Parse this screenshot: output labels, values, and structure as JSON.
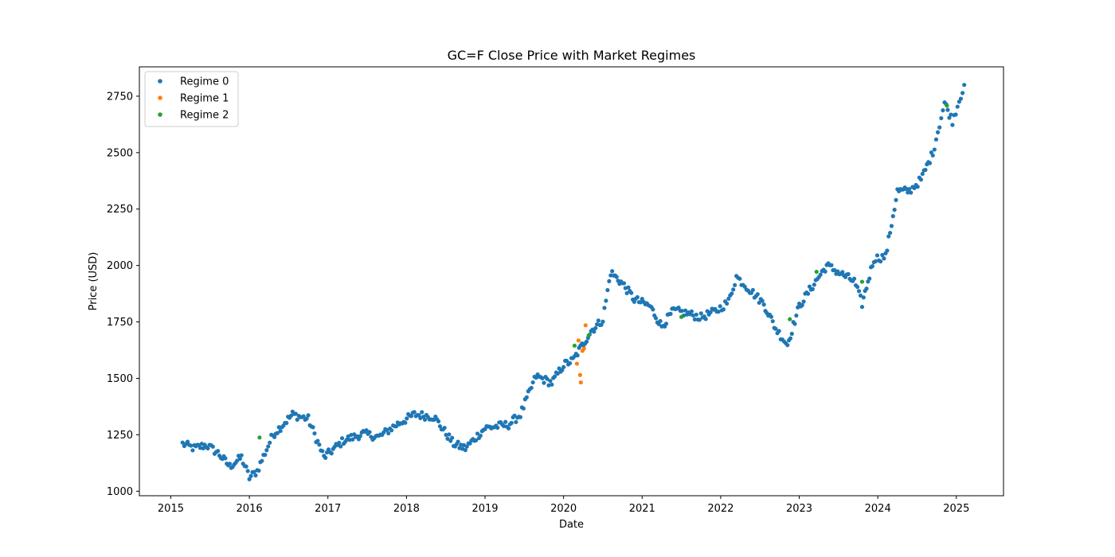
{
  "chart_data": {
    "type": "scatter",
    "title": "GC=F Close Price with Market Regimes",
    "xlabel": "Date",
    "ylabel": "Price (USD)",
    "xlim": [
      2014.6,
      2025.6
    ],
    "ylim": [
      980,
      2880
    ],
    "xticks": [
      2015,
      2016,
      2017,
      2018,
      2019,
      2020,
      2021,
      2022,
      2023,
      2024,
      2025
    ],
    "xtick_labels": [
      "2015",
      "2016",
      "2017",
      "2018",
      "2019",
      "2020",
      "2021",
      "2022",
      "2023",
      "2024",
      "2025"
    ],
    "yticks": [
      1000,
      1250,
      1500,
      1750,
      2000,
      2250,
      2500,
      2750
    ],
    "ytick_labels": [
      "1000",
      "1250",
      "1500",
      "1750",
      "2000",
      "2250",
      "2500",
      "2750"
    ],
    "legend_position": "top-left",
    "series": [
      {
        "name": "Regime 0",
        "color": "#1f77b4",
        "base_path": [
          [
            2015.15,
            1210
          ],
          [
            2015.3,
            1190
          ],
          [
            2015.45,
            1205
          ],
          [
            2015.6,
            1170
          ],
          [
            2015.75,
            1110
          ],
          [
            2015.9,
            1150
          ],
          [
            2016.0,
            1060
          ],
          [
            2016.1,
            1090
          ],
          [
            2016.3,
            1250
          ],
          [
            2016.55,
            1340
          ],
          [
            2016.75,
            1320
          ],
          [
            2016.95,
            1150
          ],
          [
            2017.2,
            1225
          ],
          [
            2017.45,
            1255
          ],
          [
            2017.65,
            1240
          ],
          [
            2017.85,
            1290
          ],
          [
            2018.1,
            1340
          ],
          [
            2018.35,
            1330
          ],
          [
            2018.6,
            1210
          ],
          [
            2018.75,
            1190
          ],
          [
            2019.0,
            1280
          ],
          [
            2019.3,
            1295
          ],
          [
            2019.45,
            1340
          ],
          [
            2019.65,
            1510
          ],
          [
            2019.85,
            1480
          ],
          [
            2020.0,
            1560
          ],
          [
            2020.12,
            1580
          ],
          [
            2020.35,
            1710
          ],
          [
            2020.5,
            1760
          ],
          [
            2020.6,
            1970
          ],
          [
            2020.75,
            1920
          ],
          [
            2020.9,
            1850
          ],
          [
            2021.1,
            1820
          ],
          [
            2021.25,
            1730
          ],
          [
            2021.4,
            1800
          ],
          [
            2021.55,
            1790
          ],
          [
            2021.75,
            1770
          ],
          [
            2021.95,
            1800
          ],
          [
            2022.1,
            1840
          ],
          [
            2022.2,
            1950
          ],
          [
            2022.35,
            1900
          ],
          [
            2022.55,
            1830
          ],
          [
            2022.7,
            1720
          ],
          [
            2022.85,
            1650
          ],
          [
            2023.0,
            1820
          ],
          [
            2023.15,
            1900
          ],
          [
            2023.35,
            2000
          ],
          [
            2023.55,
            1960
          ],
          [
            2023.7,
            1930
          ],
          [
            2023.8,
            1830
          ],
          [
            2023.95,
            2030
          ],
          [
            2024.1,
            2040
          ],
          [
            2024.25,
            2330
          ],
          [
            2024.4,
            2330
          ],
          [
            2024.55,
            2380
          ],
          [
            2024.7,
            2500
          ],
          [
            2024.85,
            2720
          ],
          [
            2024.95,
            2640
          ],
          [
            2025.1,
            2800
          ]
        ],
        "noise": 18,
        "points_per_year": 50
      },
      {
        "name": "Regime 1",
        "color": "#ff7f0e",
        "points": [
          [
            2020.17,
            1565
          ],
          [
            2020.19,
            1668
          ],
          [
            2020.21,
            1515
          ],
          [
            2020.22,
            1482
          ],
          [
            2020.24,
            1622
          ],
          [
            2020.26,
            1632
          ],
          [
            2020.28,
            1735
          ]
        ]
      },
      {
        "name": "Regime 2",
        "color": "#2ca02c",
        "points": [
          [
            2016.13,
            1238
          ],
          [
            2020.14,
            1645
          ],
          [
            2020.32,
            1690
          ],
          [
            2021.5,
            1772
          ],
          [
            2022.88,
            1762
          ],
          [
            2023.22,
            1972
          ],
          [
            2023.8,
            1928
          ],
          [
            2024.88,
            2708
          ]
        ]
      }
    ],
    "legend_entries": [
      "Regime 0",
      "Regime 1",
      "Regime 2"
    ]
  }
}
